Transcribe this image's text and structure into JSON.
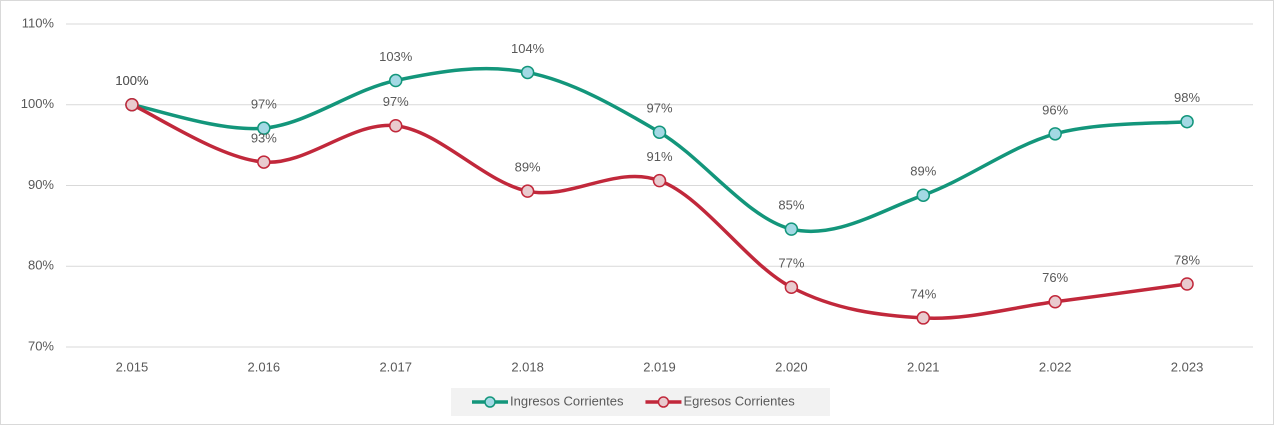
{
  "chart_data": {
    "type": "line",
    "categories": [
      "2.015",
      "2.016",
      "2.017",
      "2.018",
      "2.019",
      "2.020",
      "2.021",
      "2.022",
      "2.023"
    ],
    "series": [
      {
        "name": "Ingresos Corrientes",
        "color": "#13967b",
        "marker_color": "#a3d9e4",
        "values": [
          100,
          97.1,
          103,
          104,
          96.6,
          84.6,
          88.8,
          96.4,
          97.9
        ],
        "value_labels": [
          "100%",
          "97%",
          "103%",
          "104%",
          "97%",
          "85%",
          "89%",
          "96%",
          "98%"
        ]
      },
      {
        "name": "Egresos Corrientes",
        "color": "#c1283b",
        "marker_color": "#e9cbcf",
        "values": [
          100,
          92.9,
          97.4,
          89.3,
          90.6,
          77.4,
          73.6,
          75.6,
          77.8
        ],
        "value_labels": [
          "100%",
          "93%",
          "97%",
          "89%",
          "91%",
          "77%",
          "74%",
          "76%",
          "78%"
        ]
      }
    ],
    "ylim": [
      70,
      110
    ],
    "yticks": [
      {
        "value": 70,
        "label": "70%"
      },
      {
        "value": 80,
        "label": "80%"
      },
      {
        "value": 90,
        "label": "90%"
      },
      {
        "value": 100,
        "label": "100%"
      },
      {
        "value": 110,
        "label": "110%"
      }
    ],
    "grid": true,
    "legend": "bottom"
  }
}
